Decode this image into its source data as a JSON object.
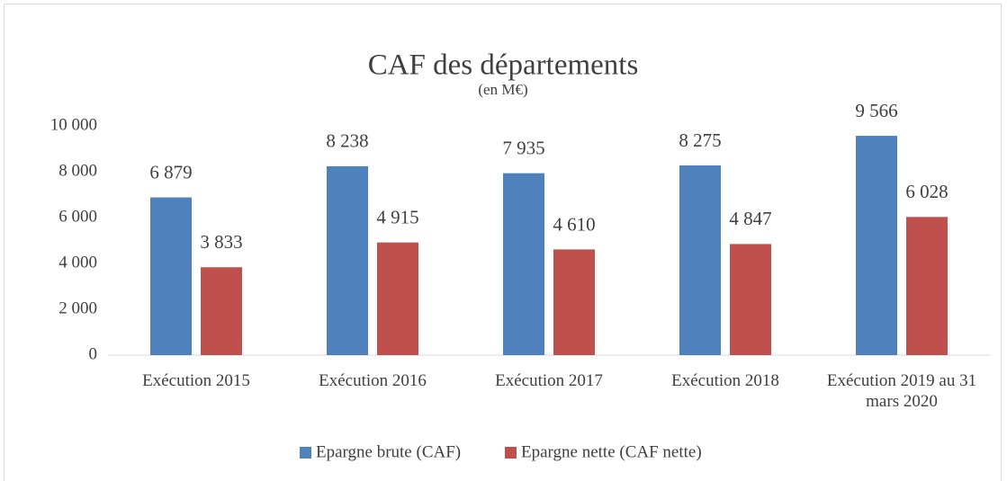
{
  "chart_data": {
    "type": "bar",
    "title": "CAF des départements",
    "subtitle": "(en M€)",
    "categories": [
      "Exécution 2015",
      "Exécution 2016",
      "Exécution 2017",
      "Exécution 2018",
      "Exécution 2019 au 31 mars 2020"
    ],
    "series": [
      {
        "name": "Epargne brute (CAF)",
        "color": "#4f81bd",
        "values": [
          6879,
          8238,
          7935,
          8275,
          9566
        ],
        "value_labels": [
          "6 879",
          "8 238",
          "7 935",
          "8 275",
          "9 566"
        ]
      },
      {
        "name": "Epargne nette (CAF nette)",
        "color": "#c0504d",
        "values": [
          3833,
          4915,
          4610,
          4847,
          6028
        ],
        "value_labels": [
          "3 833",
          "4 915",
          "4 610",
          "4 847",
          "6 028"
        ]
      }
    ],
    "ylim": [
      0,
      10000
    ],
    "yticks": [
      0,
      {
        "value": 2000,
        "label": "2 000"
      },
      {
        "value": 4000,
        "label": "4 000"
      },
      {
        "value": 6000,
        "label": "6 000"
      },
      {
        "value": 8000,
        "label": "8 000"
      },
      {
        "value": 10000,
        "label": "10 000"
      }
    ],
    "legend": "bottom"
  }
}
